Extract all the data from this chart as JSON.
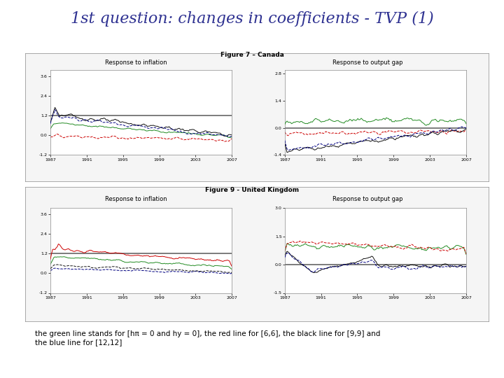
{
  "title": "1st question: changes in coefficients - TVP (1)",
  "title_color": "#2E3191",
  "title_fontsize": 16,
  "fig1_title": "Figure 7 – Canada",
  "fig2_title": "Figure 9 - United Kingdom",
  "subplot_titles": [
    "Response to inflation",
    "Response to output gap"
  ],
  "x_years": [
    1987,
    1991,
    1995,
    1999,
    2003,
    2007
  ],
  "footnote": "the green line stands for [hπ = 0 and hy = 0], the red line for [6,6], the black line for [9,9] and\nthe blue line for [12,12]",
  "footnote_fontsize": 7.5,
  "background_color": "#ffffff",
  "line_colors": {
    "green": "#228B22",
    "red": "#CC0000",
    "black": "#111111",
    "blue": "#000080"
  },
  "hline_color": "#666666",
  "canada_infl_ylim": [
    -1.2,
    4.0
  ],
  "canada_infl_yticks": [
    -1.2,
    0.0,
    1.2,
    2.4,
    3.6
  ],
  "canada_outgap_ylim": [
    -1.4,
    3.0
  ],
  "canada_outgap_yticks": [
    -1.4,
    0.0,
    1.4,
    2.8
  ],
  "uk_infl_ylim": [
    -1.2,
    4.0
  ],
  "uk_infl_yticks": [
    -1.2,
    0.0,
    1.2,
    2.4,
    3.6
  ],
  "uk_outgap_ylim": [
    -1.5,
    3.0
  ],
  "uk_outgap_yticks": [
    -1.5,
    0.0,
    1.5,
    3.0
  ],
  "canada_infl_hline": 1.2,
  "canada_outgap_hline": 0.0,
  "uk_infl_hline": 1.2,
  "uk_outgap_hline": 0.0,
  "n_points": 160
}
